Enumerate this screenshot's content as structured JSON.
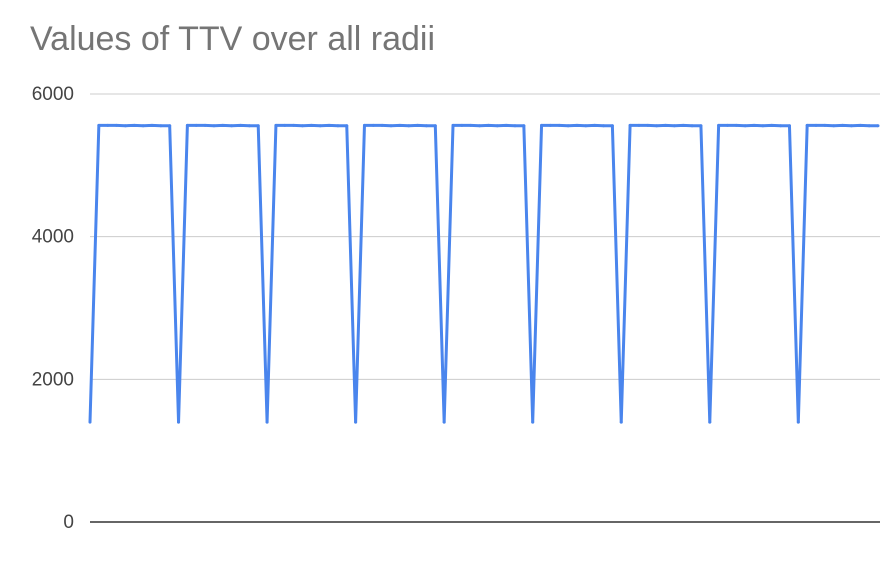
{
  "chart_data": {
    "type": "line",
    "title": "Values of TTV over all radii",
    "xlabel": "",
    "ylabel": "",
    "ylim": [
      0,
      6000
    ],
    "yticks": [
      0,
      2000,
      4000,
      6000
    ],
    "ytick_labels": [
      "0",
      "2000",
      "4000",
      "6000"
    ],
    "grid": true,
    "legend": "none",
    "colors": {
      "line": "#4a85ed",
      "grid": "#cccccc",
      "baseline": "#333333",
      "title": "#757575",
      "tick": "#444444"
    },
    "series": [
      {
        "values": [
          1400,
          5560,
          5560,
          5560,
          5555,
          5560,
          5555,
          5560,
          5555,
          5555,
          1400,
          5560,
          5560,
          5560,
          5555,
          5560,
          5555,
          5560,
          5555,
          5555,
          1400,
          5560,
          5560,
          5560,
          5555,
          5560,
          5555,
          5560,
          5555,
          5555,
          1400,
          5560,
          5560,
          5560,
          5555,
          5560,
          5555,
          5560,
          5555,
          5555,
          1400,
          5560,
          5560,
          5560,
          5555,
          5560,
          5555,
          5560,
          5555,
          5555,
          1400,
          5560,
          5560,
          5560,
          5555,
          5560,
          5555,
          5560,
          5555,
          5555,
          1400,
          5560,
          5560,
          5560,
          5555,
          5560,
          5555,
          5560,
          5555,
          5555,
          1400,
          5560,
          5560,
          5560,
          5555,
          5560,
          5555,
          5560,
          5555,
          5555,
          1400,
          5560,
          5560,
          5560,
          5555,
          5560,
          5555,
          5560,
          5555,
          5555
        ]
      }
    ]
  }
}
